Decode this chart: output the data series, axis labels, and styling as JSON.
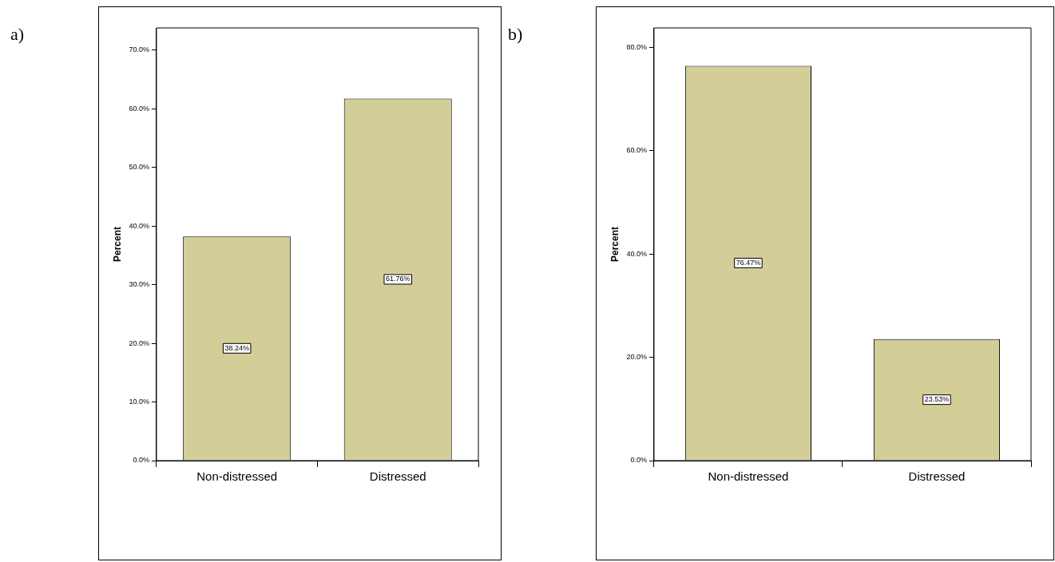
{
  "chart_data": [
    {
      "type": "bar",
      "title": "a)",
      "ylabel": "Percent",
      "categories": [
        "Non-distressed",
        "Distressed"
      ],
      "values": [
        38.24,
        61.76
      ],
      "value_labels": [
        "38.24%",
        "61.76%"
      ],
      "color": "#d3cd98",
      "ylim": [
        0,
        73.8
      ],
      "yticks": [
        {
          "value": 0,
          "label": "0.0%"
        },
        {
          "value": 10,
          "label": "10.0%"
        },
        {
          "value": 20,
          "label": "20.0%"
        },
        {
          "value": 30,
          "label": "30.0%"
        },
        {
          "value": 40,
          "label": "40.0%"
        },
        {
          "value": 50,
          "label": "50.0%"
        },
        {
          "value": 60,
          "label": "60.0%"
        },
        {
          "value": 70,
          "label": "70.0%"
        }
      ],
      "grid": false,
      "legend": false
    },
    {
      "type": "bar",
      "title": "b)",
      "ylabel": "Percent",
      "categories": [
        "Non-distressed",
        "Distressed"
      ],
      "values": [
        76.47,
        23.53
      ],
      "value_labels": [
        "76.47%",
        "23.53%"
      ],
      "color": "#d3cd98",
      "ylim": [
        0,
        83.8
      ],
      "yticks": [
        {
          "value": 0,
          "label": "0.0%"
        },
        {
          "value": 20,
          "label": "20.0%"
        },
        {
          "value": 40,
          "label": "40.0%"
        },
        {
          "value": 60,
          "label": "60.0%"
        },
        {
          "value": 80,
          "label": "80.0%"
        }
      ],
      "grid": false,
      "legend": false
    }
  ]
}
